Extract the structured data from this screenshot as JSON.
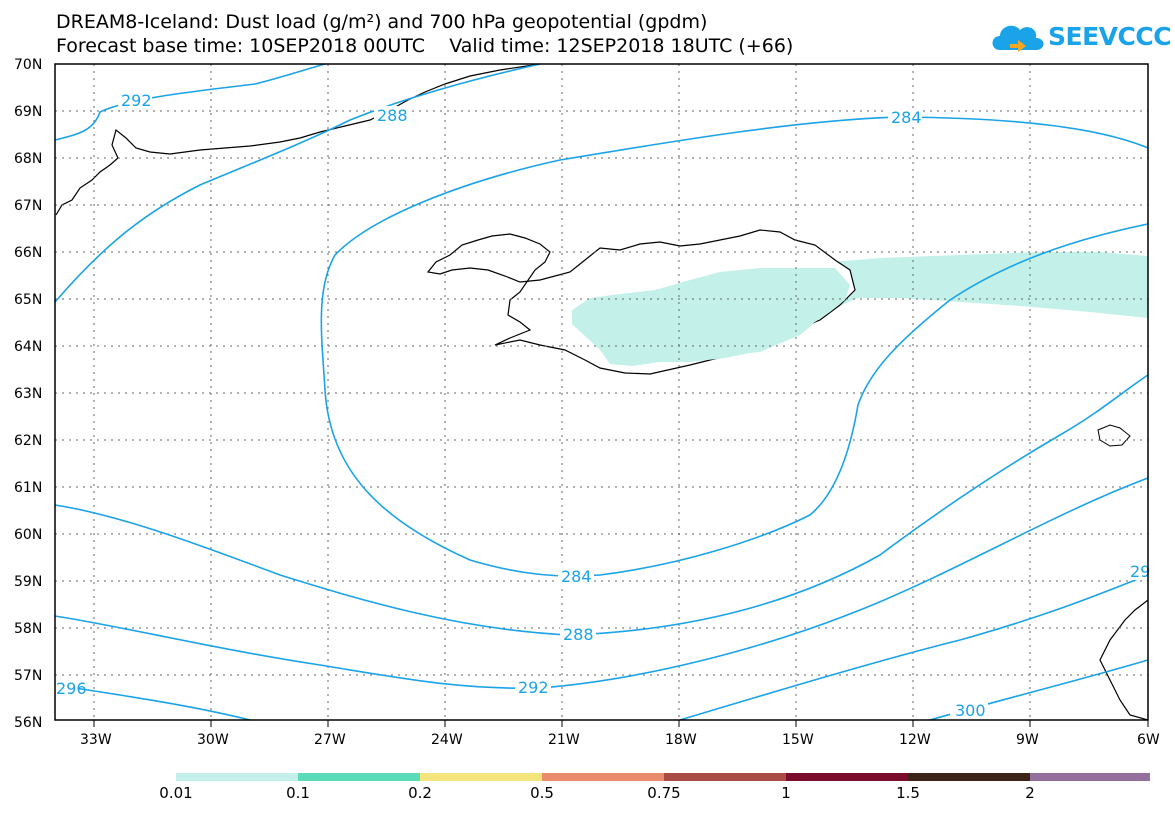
{
  "title_line1": "DREAM8-Iceland: Dust load (g/m²) and 700 hPa geopotential (gpdm)",
  "title_line2": "Forecast base time: 10SEP2018 00UTC    Valid time: 12SEP2018 18UTC (+66)",
  "logo_text": "SEEVCCC",
  "logo_icon": "cloud-logo-icon",
  "lat_labels": [
    "70N",
    "69N",
    "68N",
    "67N",
    "66N",
    "65N",
    "64N",
    "63N",
    "62N",
    "61N",
    "60N",
    "59N",
    "58N",
    "57N",
    "56N"
  ],
  "lon_labels": [
    "33W",
    "30W",
    "27W",
    "24W",
    "21W",
    "18W",
    "15W",
    "12W",
    "9W",
    "6W"
  ],
  "contour_labels": [
    "292",
    "288",
    "284",
    "284",
    "288",
    "292",
    "296",
    "300",
    "29"
  ],
  "colorbar": {
    "labels": [
      "0.01",
      "0.1",
      "0.2",
      "0.5",
      "0.75",
      "1",
      "1.5",
      "2"
    ],
    "colors": [
      "#c4f0ea",
      "#5adcb8",
      "#f4e47c",
      "#e88c6c",
      "#a84c44",
      "#7c0c2c",
      "#3c2418",
      "#94709c"
    ]
  },
  "colors": {
    "contour": "#1aa3e8",
    "dust": "#c4f0ea",
    "coast": "#000000"
  }
}
